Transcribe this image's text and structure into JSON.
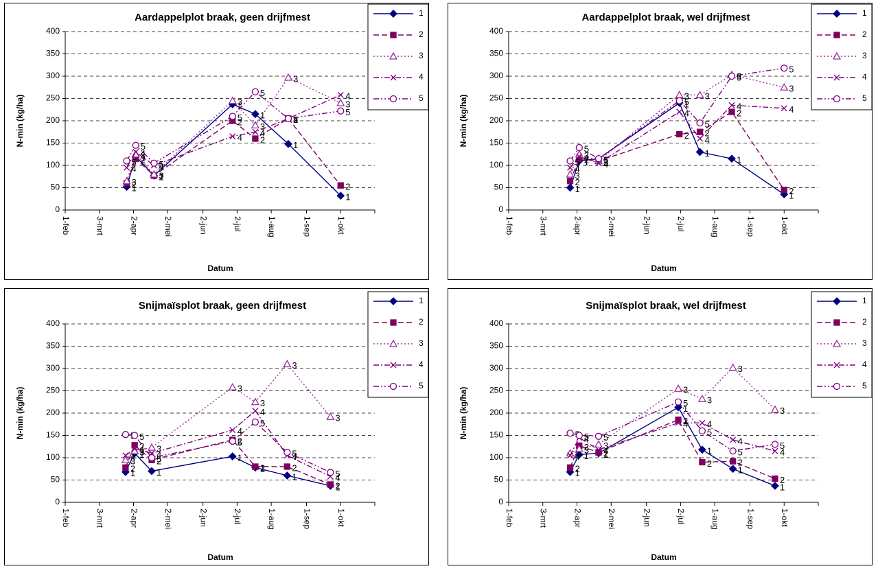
{
  "chart_data": [
    {
      "type": "line",
      "title": "Aardappelplot braak, geen drijfmest",
      "x_label": "Datum",
      "y_label": "N-min (kg/ha)",
      "x": [
        "03-27",
        "04-04",
        "04-20",
        "06-28",
        "07-18",
        "08-16",
        "10-01"
      ],
      "xlim": [
        "02-01",
        "10-31"
      ],
      "xticks": [
        {
          "value": "02-01",
          "label": "1-feb"
        },
        {
          "value": "03-03",
          "label": "3-mrt"
        },
        {
          "value": "04-02",
          "label": "2-apr"
        },
        {
          "value": "05-02",
          "label": "2-mei"
        },
        {
          "value": "06-02",
          "label": "2-jun"
        },
        {
          "value": "07-02",
          "label": "2-jul"
        },
        {
          "value": "08-01",
          "label": "1-aug"
        },
        {
          "value": "09-01",
          "label": "1-sep"
        },
        {
          "value": "10-01",
          "label": "1-okt"
        }
      ],
      "ylim": [
        0,
        400
      ],
      "yticks": [
        0,
        50,
        100,
        150,
        200,
        250,
        300,
        350,
        400
      ],
      "grid": true,
      "legend": "right",
      "series": [
        {
          "name": "1",
          "color": "#000080",
          "line_style": "solid",
          "marker": "diamond",
          "values": [
            52,
            120,
            77,
            237,
            215,
            148,
            32
          ]
        },
        {
          "name": "2",
          "color": "#800060",
          "line_style": "dashed",
          "marker": "square",
          "values": [
            60,
            115,
            77,
            200,
            160,
            205,
            55
          ]
        },
        {
          "name": "3",
          "color": "#993399",
          "line_style": "dotted",
          "marker": "triangle",
          "values": [
            65,
            125,
            80,
            245,
            190,
            297,
            240
          ]
        },
        {
          "name": "4",
          "color": "#800080",
          "line_style": "dashdot",
          "marker": "x",
          "values": [
            95,
            130,
            100,
            165,
            175,
            205,
            258
          ]
        },
        {
          "name": "5",
          "color": "#800080",
          "line_style": "dashdotdot",
          "marker": "circle",
          "values": [
            110,
            145,
            105,
            210,
            265,
            205,
            222
          ]
        }
      ]
    },
    {
      "type": "line",
      "title": "Aardappelplot braak, wel drijfmest",
      "x_label": "Datum",
      "y_label": "N-min (kg/ha)",
      "x": [
        "03-27",
        "04-04",
        "04-21",
        "07-01",
        "07-19",
        "08-16",
        "10-01"
      ],
      "xlim": [
        "02-01",
        "10-31"
      ],
      "xticks": [
        {
          "value": "02-01",
          "label": "1-feb"
        },
        {
          "value": "03-03",
          "label": "3-mrt"
        },
        {
          "value": "04-02",
          "label": "2-apr"
        },
        {
          "value": "05-02",
          "label": "2-mei"
        },
        {
          "value": "06-02",
          "label": "2-jun"
        },
        {
          "value": "07-02",
          "label": "2-jul"
        },
        {
          "value": "08-01",
          "label": "1-aug"
        },
        {
          "value": "09-01",
          "label": "1-sep"
        },
        {
          "value": "10-01",
          "label": "1-okt"
        }
      ],
      "ylim": [
        0,
        400
      ],
      "yticks": [
        0,
        50,
        100,
        150,
        200,
        250,
        300,
        350,
        400
      ],
      "grid": true,
      "legend": "right",
      "series": [
        {
          "name": "1",
          "color": "#000080",
          "line_style": "solid",
          "marker": "diamond",
          "values": [
            50,
            110,
            115,
            240,
            130,
            115,
            35
          ]
        },
        {
          "name": "2",
          "color": "#800060",
          "line_style": "dashed",
          "marker": "square",
          "values": [
            65,
            115,
            110,
            170,
            175,
            220,
            45
          ]
        },
        {
          "name": "3",
          "color": "#993399",
          "line_style": "dotted",
          "marker": "triangle",
          "values": [
            80,
            125,
            110,
            258,
            258,
            303,
            275
          ]
        },
        {
          "name": "4",
          "color": "#800080",
          "line_style": "dashdot",
          "marker": "x",
          "values": [
            95,
            120,
            105,
            220,
            160,
            235,
            228
          ]
        },
        {
          "name": "5",
          "color": "#800080",
          "line_style": "dashdotdot",
          "marker": "circle",
          "values": [
            110,
            140,
            115,
            245,
            195,
            300,
            318
          ]
        }
      ]
    },
    {
      "type": "line",
      "title": "Snijmaïsplot braak, geen drijfmest",
      "x_label": "Datum",
      "y_label": "N-min (kg/ha)",
      "x": [
        "03-26",
        "04-03",
        "04-18",
        "06-28",
        "07-18",
        "08-15",
        "09-22"
      ],
      "xlim": [
        "02-01",
        "10-31"
      ],
      "xticks": [
        {
          "value": "02-01",
          "label": "1-feb"
        },
        {
          "value": "03-03",
          "label": "3-mrt"
        },
        {
          "value": "04-02",
          "label": "2-apr"
        },
        {
          "value": "05-02",
          "label": "2-mei"
        },
        {
          "value": "06-02",
          "label": "2-jun"
        },
        {
          "value": "07-02",
          "label": "2-jul"
        },
        {
          "value": "08-01",
          "label": "1-aug"
        },
        {
          "value": "09-01",
          "label": "1-sep"
        },
        {
          "value": "10-01",
          "label": "1-okt"
        }
      ],
      "ylim": [
        0,
        400
      ],
      "yticks": [
        0,
        50,
        100,
        150,
        200,
        250,
        300,
        350,
        400
      ],
      "grid": true,
      "legend": "right",
      "series": [
        {
          "name": "1",
          "color": "#000080",
          "line_style": "solid",
          "marker": "diamond",
          "values": [
            68,
            110,
            70,
            103,
            78,
            60,
            37
          ]
        },
        {
          "name": "2",
          "color": "#800060",
          "line_style": "dashed",
          "marker": "square",
          "values": [
            78,
            128,
            95,
            140,
            80,
            80,
            40
          ]
        },
        {
          "name": "3",
          "color": "#993399",
          "line_style": "dotted",
          "marker": "triangle",
          "values": [
            95,
            115,
            123,
            258,
            225,
            310,
            192
          ]
        },
        {
          "name": "4",
          "color": "#800080",
          "line_style": "dashdot",
          "marker": "x",
          "values": [
            105,
            120,
            110,
            162,
            205,
            105,
            58
          ]
        },
        {
          "name": "5",
          "color": "#800080",
          "line_style": "dashdotdot",
          "marker": "circle",
          "values": [
            152,
            150,
            100,
            137,
            180,
            112,
            67
          ]
        }
      ]
    },
    {
      "type": "line",
      "title": "Snijmaïsplot braak, wel drijfmest",
      "x_label": "Datum",
      "y_label": "N-min (kg/ha)",
      "x": [
        "03-27",
        "04-04",
        "04-21",
        "06-30",
        "07-21",
        "08-17",
        "09-23"
      ],
      "xlim": [
        "02-01",
        "10-31"
      ],
      "xticks": [
        {
          "value": "02-01",
          "label": "1-feb"
        },
        {
          "value": "03-03",
          "label": "3-mrt"
        },
        {
          "value": "04-02",
          "label": "2-apr"
        },
        {
          "value": "05-02",
          "label": "2-mei"
        },
        {
          "value": "06-02",
          "label": "2-jun"
        },
        {
          "value": "07-02",
          "label": "2-jul"
        },
        {
          "value": "08-01",
          "label": "1-aug"
        },
        {
          "value": "09-01",
          "label": "1-sep"
        },
        {
          "value": "10-01",
          "label": "1-okt"
        }
      ],
      "ylim": [
        0,
        400
      ],
      "yticks": [
        0,
        50,
        100,
        150,
        200,
        250,
        300,
        350,
        400
      ],
      "grid": true,
      "legend": "right",
      "series": [
        {
          "name": "1",
          "color": "#000080",
          "line_style": "solid",
          "marker": "diamond",
          "values": [
            68,
            107,
            110,
            213,
            118,
            75,
            37
          ]
        },
        {
          "name": "2",
          "color": "#800060",
          "line_style": "dashed",
          "marker": "square",
          "values": [
            78,
            127,
            112,
            185,
            90,
            92,
            53
          ]
        },
        {
          "name": "3",
          "color": "#993399",
          "line_style": "dotted",
          "marker": "triangle",
          "values": [
            110,
            120,
            130,
            255,
            232,
            302,
            208
          ]
        },
        {
          "name": "4",
          "color": "#800080",
          "line_style": "dashdot",
          "marker": "x",
          "values": [
            105,
            145,
            118,
            178,
            178,
            140,
            115
          ]
        },
        {
          "name": "5",
          "color": "#800080",
          "line_style": "dashdotdot",
          "marker": "circle",
          "values": [
            155,
            150,
            148,
            225,
            160,
            115,
            130
          ]
        }
      ]
    }
  ]
}
